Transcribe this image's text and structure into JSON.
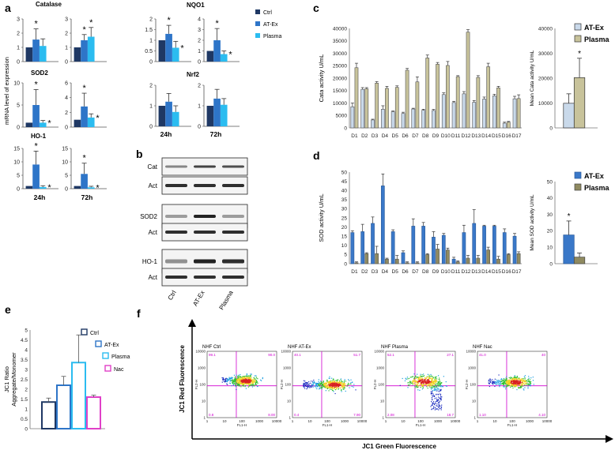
{
  "colors": {
    "ctrl": "#1f3864",
    "atex": "#2e75c8",
    "plasma": "#2bbcf0",
    "nac": "#e040c8",
    "cata_plasma": "#c8c39b",
    "cata_atex": "#c9d9ea",
    "sod_plasma": "#8f8a60",
    "sod_atex": "#3a78c8"
  },
  "panel_labels": {
    "a": "a",
    "b": "b",
    "c": "c",
    "d": "d",
    "e": "e",
    "f": "f"
  },
  "panel_a": {
    "ylabel": "mRNA level of expression",
    "legend": [
      "Ctrl",
      "AT-Ex",
      "Plasma"
    ],
    "x_24h": "24h",
    "x_72h": "72h",
    "charts": [
      {
        "gene": "Catalase",
        "time": "24h",
        "ymax": 3,
        "ticks": [
          "0",
          "1",
          "2",
          "3"
        ],
        "values": [
          1.0,
          1.55,
          1.1
        ],
        "errors": [
          0,
          0.75,
          0.5
        ],
        "stars": [
          "*",
          ""
        ]
      },
      {
        "gene": "Catalase",
        "time": "72h",
        "ymax": 3,
        "ticks": [
          "0",
          "1",
          "2",
          "3"
        ],
        "values": [
          1.0,
          1.5,
          1.75
        ],
        "errors": [
          0,
          0.4,
          0.65
        ],
        "stars": [
          "*",
          "*"
        ]
      },
      {
        "gene": "NQO1",
        "time": "24h",
        "ymax": 2,
        "ticks": [
          "0",
          "0.5",
          "1",
          "1.5",
          "2"
        ],
        "values": [
          1.0,
          1.3,
          0.65
        ],
        "errors": [
          0,
          0.4,
          0.3
        ],
        "stars": [
          "*",
          "*"
        ]
      },
      {
        "gene": "NQO1",
        "time": "72h",
        "ymax": 4,
        "ticks": [
          "0",
          "1",
          "2",
          "3",
          "4"
        ],
        "values": [
          1.0,
          2.0,
          0.7
        ],
        "errors": [
          0,
          1.1,
          0.3
        ],
        "stars": [
          "*",
          "*"
        ]
      },
      {
        "gene": "SOD2",
        "time": "24h",
        "ymax": 10,
        "ticks": [
          "0",
          "5",
          "10"
        ],
        "values": [
          1.0,
          5.0,
          1.0
        ],
        "errors": [
          0,
          3.5,
          0.5
        ],
        "stars": [
          "*",
          "*"
        ]
      },
      {
        "gene": "SOD2",
        "time": "72h",
        "ymax": 6,
        "ticks": [
          "0",
          "2",
          "4",
          "6"
        ],
        "values": [
          1.0,
          2.8,
          1.3
        ],
        "errors": [
          0,
          1.8,
          0.5
        ],
        "stars": [
          "*",
          "*"
        ]
      },
      {
        "gene": "Nrf2",
        "time": "24h",
        "ymax": 2,
        "ticks": [
          "0",
          "1",
          "2"
        ],
        "values": [
          1.0,
          1.2,
          0.7
        ],
        "errors": [
          0,
          0.4,
          0.3
        ],
        "stars": [
          "",
          ""
        ]
      },
      {
        "gene": "Nrf2",
        "time": "72h",
        "ymax": 2,
        "ticks": [
          "0",
          "1",
          "2"
        ],
        "values": [
          1.0,
          1.35,
          1.05
        ],
        "errors": [
          0,
          0.45,
          0.3
        ],
        "stars": [
          "",
          ""
        ]
      },
      {
        "gene": "HO-1",
        "time": "24h",
        "ymax": 15,
        "ticks": [
          "0",
          "5",
          "10",
          "15"
        ],
        "values": [
          1.0,
          9.0,
          0.6
        ],
        "errors": [
          0,
          5.0,
          0.5
        ],
        "stars": [
          "*",
          "*"
        ]
      },
      {
        "gene": "HO-1",
        "time": "72h",
        "ymax": 15,
        "ticks": [
          "0",
          "5",
          "10",
          "15"
        ],
        "values": [
          1.0,
          5.5,
          0.5
        ],
        "errors": [
          0,
          4.0,
          0.4
        ],
        "stars": [
          "*",
          "*"
        ]
      }
    ]
  },
  "panel_b": {
    "rows": [
      "Cat",
      "Act",
      "SOD2",
      "Act",
      "HO-1",
      "Act"
    ],
    "lanes": [
      "Ctrl",
      "AT-Ex",
      "Plasma"
    ]
  },
  "chart_data": [
    {
      "type": "bar",
      "title": "",
      "ylabel": "Cata activity U/mL",
      "ylim": [
        0,
        40000
      ],
      "yticks": [
        "0",
        "5000",
        "10000",
        "15000",
        "20000",
        "25000",
        "30000",
        "35000",
        "40000"
      ],
      "categories": [
        "D1",
        "D2",
        "D3",
        "D4",
        "D5",
        "D6",
        "D7",
        "D8",
        "D9",
        "D10",
        "D11",
        "D12",
        "D13",
        "D14",
        "D15",
        "D16",
        "D17"
      ],
      "series": [
        {
          "name": "AT-Ex",
          "values": [
            8500,
            15500,
            3200,
            7500,
            6500,
            5800,
            7600,
            7100,
            7000,
            13400,
            10200,
            13700,
            10300,
            11600,
            12900,
            1900,
            11700
          ],
          "errors": [
            1500,
            700,
            300,
            1400,
            300,
            500,
            300,
            400,
            400,
            700,
            500,
            900,
            700,
            800,
            600,
            400,
            1000
          ]
        },
        {
          "name": "Plasma",
          "values": [
            24200,
            15700,
            18000,
            15900,
            16300,
            23200,
            18500,
            28100,
            25600,
            25100,
            20600,
            38500,
            20300,
            24600,
            16100,
            2300,
            11800
          ],
          "errors": [
            1800,
            500,
            600,
            800,
            600,
            700,
            2000,
            1200,
            700,
            1600,
            400,
            1000,
            700,
            1400,
            600,
            300,
            1500
          ]
        }
      ]
    },
    {
      "type": "bar",
      "ylabel": "Mean Cata activity U/mL",
      "ylim": [
        0,
        40000
      ],
      "yticks": [
        "0",
        "10000",
        "20000",
        "30000",
        "40000"
      ],
      "legend": [
        "AT-Ex",
        "Plasma"
      ],
      "categories": [
        "AT-Ex",
        "Plasma"
      ],
      "values": [
        9900,
        20200
      ],
      "errors": [
        3800,
        7800
      ],
      "star": "*"
    },
    {
      "type": "bar",
      "ylabel": "SOD activity U/mL",
      "ylim": [
        0,
        50
      ],
      "yticks": [
        "0",
        "5",
        "10",
        "15",
        "20",
        "25",
        "30",
        "35",
        "40",
        "45",
        "50"
      ],
      "categories": [
        "D1",
        "D2",
        "D3",
        "D4",
        "D5",
        "D6",
        "D7",
        "D8",
        "D9",
        "D10",
        "D11",
        "D12",
        "D13",
        "D14",
        "D15",
        "D16",
        "D17"
      ],
      "series": [
        {
          "name": "AT-Ex",
          "values": [
            17,
            17.5,
            22,
            42.5,
            17.5,
            6,
            20.5,
            20.5,
            14.5,
            15.5,
            2.5,
            17,
            22,
            20.5,
            20.5,
            17,
            15
          ],
          "errors": [
            1,
            4,
            3.5,
            6.5,
            1,
            1,
            4,
            2,
            3,
            1,
            1,
            4,
            7.5,
            0.5,
            0.5,
            2,
            1.5
          ]
        },
        {
          "name": "Plasma",
          "values": [
            0.5,
            5.5,
            5.5,
            2.5,
            2.5,
            0.5,
            0.5,
            5,
            8,
            7.5,
            1,
            3,
            3,
            7.5,
            2.5,
            5,
            5.5
          ],
          "errors": [
            0.5,
            0.5,
            4,
            0.5,
            2,
            0.5,
            0.5,
            0.5,
            2.5,
            1,
            0.5,
            1.5,
            1.5,
            1.5,
            1.5,
            0.5,
            1
          ]
        }
      ]
    },
    {
      "type": "bar",
      "ylabel": "Mean SOD activity U/mL",
      "ylim": [
        0,
        50
      ],
      "yticks": [
        "0",
        "10",
        "20",
        "30",
        "40",
        "50"
      ],
      "legend": [
        "AT-Ex",
        "Plasma"
      ],
      "categories": [
        "AT-Ex",
        "Plasma"
      ],
      "values": [
        17.5,
        4
      ],
      "errors": [
        8.5,
        2.5
      ],
      "star": "*"
    },
    {
      "type": "bar",
      "ylabel": "JC1 Ratio\nAggregate/Monomer",
      "ylim": [
        0,
        5
      ],
      "yticks": [
        "0",
        "0.5",
        "1",
        "1.5",
        "2",
        "2.5",
        "3",
        "3.5",
        "4",
        "4.5",
        "5"
      ],
      "legend": [
        "Ctrl",
        "AT-Ex",
        "Plasma",
        "Nac"
      ],
      "categories": [
        "Ctrl",
        "AT-Ex",
        "Plasma",
        "Nac"
      ],
      "values": [
        1.35,
        2.2,
        3.35,
        1.6
      ],
      "errors": [
        0.2,
        0.45,
        1.4,
        0.1
      ]
    }
  ],
  "panel_f": {
    "ylabel": "JC1 Red Fluorescence",
    "xlabel": "JC1 Green Fluorescence",
    "plots": [
      {
        "title": "NHF Ctrl",
        "q": [
          "99.1",
          "90.0",
          "0.8",
          "8.00"
        ],
        "shape": "ctrl"
      },
      {
        "title": "NHF AT-Ex",
        "q": [
          "40.1",
          "51.7",
          "0.4",
          "7.90"
        ],
        "shape": "atex"
      },
      {
        "title": "NHF Plasma",
        "q": [
          "52.1",
          "27.1",
          "2.08",
          "18.7"
        ],
        "shape": "plasma"
      },
      {
        "title": "NHF Nac",
        "q": [
          "41.0",
          "40",
          "1.10",
          "4.10"
        ],
        "shape": "nac"
      }
    ],
    "axis_ticks": [
      "1",
      "10",
      "100",
      "1000",
      "10000"
    ],
    "x_axis_name": "FL1-H",
    "y_axis_name": "FL2-H"
  }
}
